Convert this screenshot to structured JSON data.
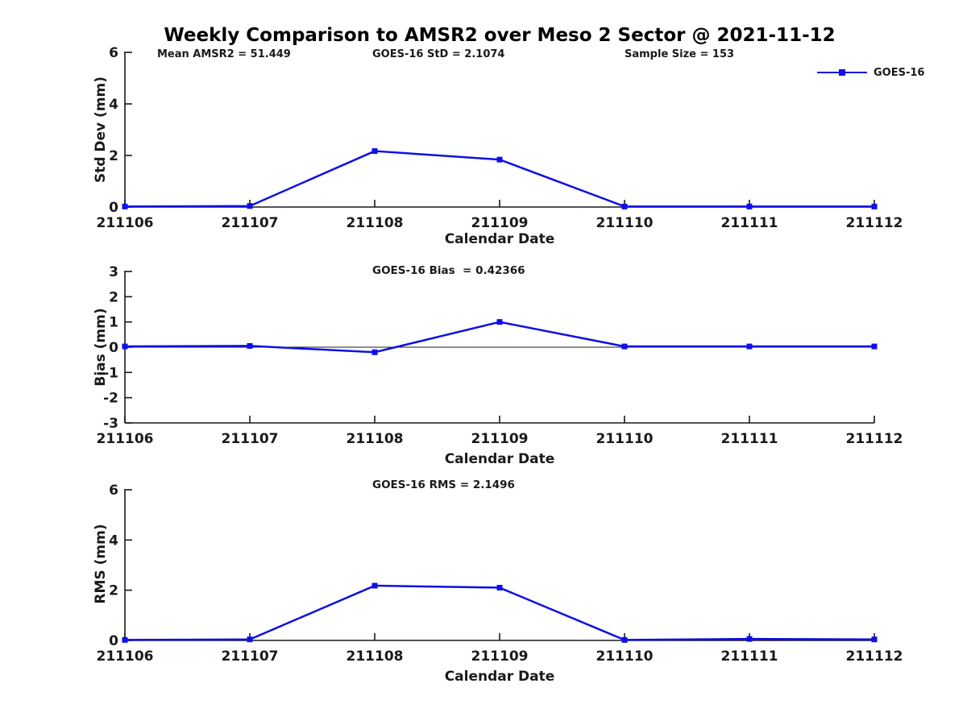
{
  "figure_title": "Weekly Comparison to AMSR2 over Meso 2 Sector @ 2021-11-12",
  "legend": {
    "label": "GOES-16",
    "position": "top-right"
  },
  "colors": {
    "series": "#0f0fe6",
    "axis": "#1a1a1a",
    "text": "#1a1a1a",
    "background": "#ffffff"
  },
  "chart_data": [
    {
      "type": "line",
      "id": "std-dev",
      "title": "",
      "annotations": {
        "mean_amsr2": "Mean AMSR2 = 51.449",
        "goes16_std": "GOES-16 StD = 2.1074",
        "sample_size": "Sample Size = 153"
      },
      "xlabel": "Calendar Date",
      "ylabel": "Std Dev (mm)",
      "categories": [
        "211106",
        "211107",
        "211108",
        "211109",
        "211110",
        "211111",
        "211112"
      ],
      "series": [
        {
          "name": "GOES-16",
          "values": [
            0.02,
            0.04,
            2.17,
            1.84,
            0.02,
            0.02,
            0.02
          ]
        }
      ],
      "ylim": [
        0,
        6
      ],
      "yticks": [
        0,
        2,
        4,
        6
      ],
      "grid": false,
      "zero_line": false
    },
    {
      "type": "line",
      "id": "bias",
      "title": "GOES-16 Bias  = 0.42366",
      "xlabel": "Calendar Date",
      "ylabel": "Bias (mm)",
      "categories": [
        "211106",
        "211107",
        "211108",
        "211109",
        "211110",
        "211111",
        "211112"
      ],
      "series": [
        {
          "name": "GOES-16",
          "values": [
            0.03,
            0.05,
            -0.2,
            1.0,
            0.03,
            0.03,
            0.03
          ]
        }
      ],
      "ylim": [
        -3,
        3
      ],
      "yticks": [
        -3,
        -2,
        -1,
        0,
        1,
        2,
        3
      ],
      "grid": false,
      "zero_line": true
    },
    {
      "type": "line",
      "id": "rms",
      "title": "GOES-16 RMS = 2.1496",
      "xlabel": "Calendar Date",
      "ylabel": "RMS (mm)",
      "categories": [
        "211106",
        "211107",
        "211108",
        "211109",
        "211110",
        "211111",
        "211112"
      ],
      "series": [
        {
          "name": "GOES-16",
          "values": [
            0.02,
            0.04,
            2.18,
            2.1,
            0.02,
            0.06,
            0.04
          ]
        }
      ],
      "ylim": [
        0,
        6
      ],
      "yticks": [
        0,
        2,
        4,
        6
      ],
      "grid": false,
      "zero_line": false
    }
  ]
}
